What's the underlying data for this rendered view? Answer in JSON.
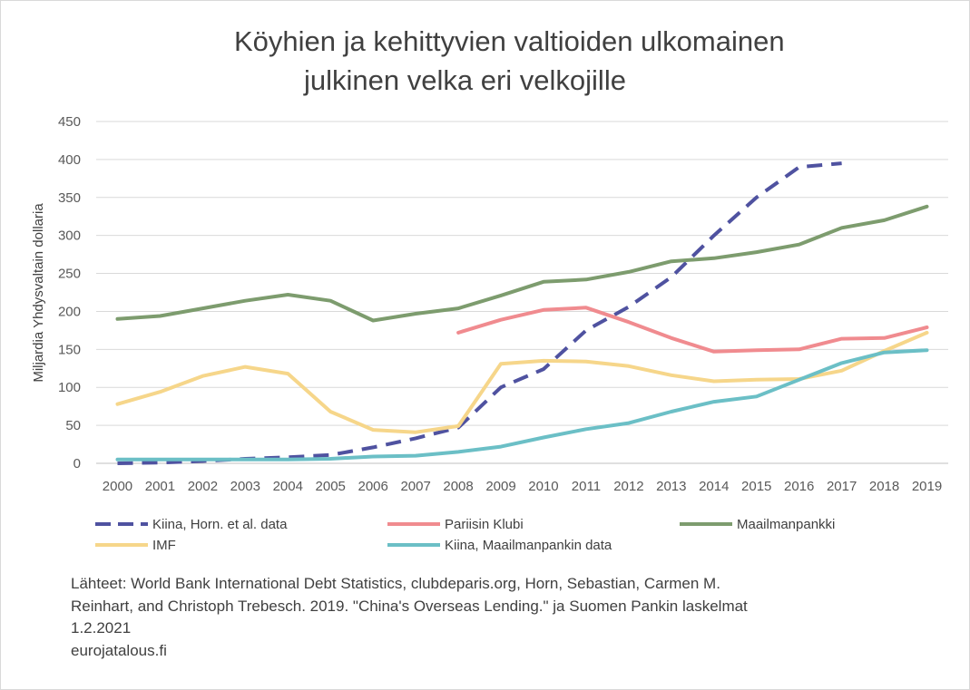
{
  "chart_data": {
    "type": "line",
    "title_lines": [
      "Köyhien ja kehittyvien valtioiden ulkomainen",
      "julkinen velka eri velkojille"
    ],
    "xlabel": "",
    "ylabel": "Miljardia Yhdysvaltain dollaria",
    "ylim": [
      0,
      450
    ],
    "yticks": [
      0,
      50,
      100,
      150,
      200,
      250,
      300,
      350,
      400,
      450
    ],
    "grid": true,
    "legend_position": "bottom",
    "categories": [
      "2000",
      "2001",
      "2002",
      "2003",
      "2004",
      "2005",
      "2006",
      "2007",
      "2008",
      "2009",
      "2010",
      "2011",
      "2012",
      "2013",
      "2014",
      "2015",
      "2016",
      "2017",
      "2018",
      "2019"
    ],
    "series": [
      {
        "name": "Kiina, Horn. et al. data",
        "color": "#4f52a0",
        "style": "dashed",
        "values": [
          0,
          1,
          3,
          6,
          8,
          11,
          21,
          33,
          47,
          100,
          124,
          175,
          206,
          245,
          300,
          350,
          390,
          395,
          null,
          null
        ]
      },
      {
        "name": "Pariisin Klubi",
        "color": "#f08b8f",
        "style": "solid",
        "values": [
          null,
          null,
          null,
          null,
          null,
          null,
          null,
          null,
          172,
          189,
          202,
          205,
          186,
          165,
          147,
          149,
          150,
          164,
          165,
          179
        ]
      },
      {
        "name": "Maailmanpankki",
        "color": "#7d9c6e",
        "style": "solid",
        "values": [
          190,
          194,
          204,
          214,
          222,
          214,
          188,
          197,
          204,
          221,
          239,
          242,
          252,
          266,
          270,
          278,
          288,
          310,
          320,
          338
        ]
      },
      {
        "name": "IMF",
        "color": "#f6d68a",
        "style": "solid",
        "values": [
          78,
          94,
          115,
          127,
          118,
          68,
          44,
          41,
          49,
          131,
          135,
          134,
          128,
          116,
          108,
          110,
          111,
          122,
          148,
          172
        ]
      },
      {
        "name": "Kiina, Maailmanpankin data",
        "color": "#6bbfc6",
        "style": "solid",
        "values": [
          5,
          5,
          5,
          5,
          5,
          6,
          9,
          10,
          15,
          22,
          34,
          45,
          53,
          68,
          81,
          88,
          110,
          132,
          146,
          149
        ]
      }
    ]
  },
  "source": {
    "lines": [
      "Lähteet: World Bank International Debt Statistics, clubdeparis.org, Horn, Sebastian, Carmen M.",
      "Reinhart, and Christoph Trebesch. 2019. \"China's Overseas Lending.\" ja Suomen Pankin laskelmat",
      "1.2.2021",
      "eurojatalous.fi"
    ]
  }
}
